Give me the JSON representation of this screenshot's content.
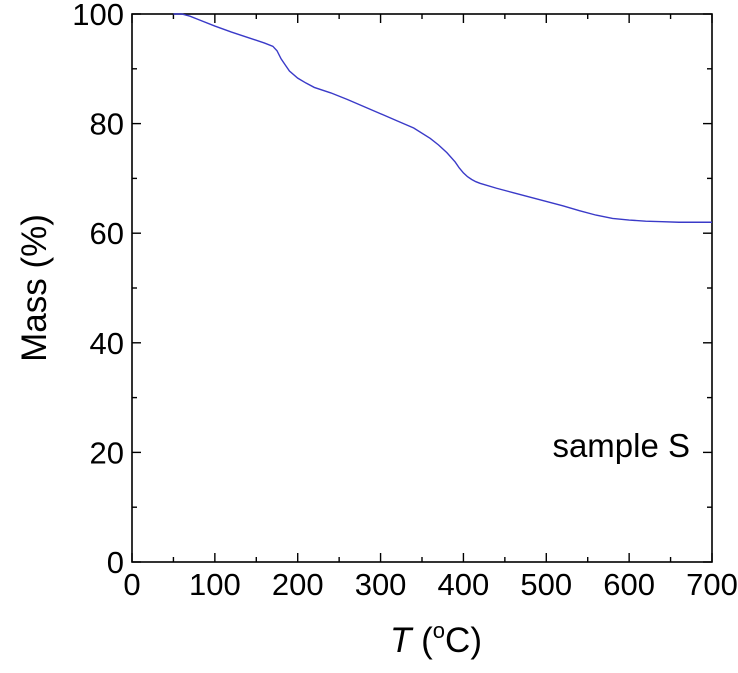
{
  "chart_data": {
    "type": "line",
    "title": "",
    "xlabel": {
      "symbol": "T",
      "unit_open": " (",
      "unit_sup": "o",
      "unit_rest": "C)"
    },
    "ylabel": "Mass (%)",
    "xlim": [
      0,
      700
    ],
    "ylim": [
      0,
      100
    ],
    "x_ticks": [
      "0",
      "100",
      "200",
      "300",
      "400",
      "500",
      "600",
      "700"
    ],
    "y_ticks": [
      "0",
      "20",
      "40",
      "60",
      "80",
      "100"
    ],
    "grid": false,
    "annotation": "sample S",
    "colors": {
      "line": "#3a3ac8",
      "axes": "#000000"
    },
    "series": [
      {
        "x": [
          50,
          60,
          70,
          80,
          100,
          120,
          140,
          160,
          170,
          175,
          180,
          185,
          190,
          200,
          210,
          220,
          240,
          260,
          280,
          300,
          320,
          340,
          360,
          370,
          380,
          390,
          395,
          400,
          405,
          410,
          415,
          420,
          440,
          460,
          480,
          500,
          520,
          540,
          560,
          580,
          600,
          620,
          640,
          660,
          680,
          700
        ],
        "y": [
          100,
          100,
          99.6,
          99,
          97.8,
          96.7,
          95.7,
          94.7,
          94.1,
          93.3,
          91.8,
          90.7,
          89.6,
          88.3,
          87.4,
          86.6,
          85.6,
          84.4,
          83.1,
          81.8,
          80.5,
          79.2,
          77.3,
          76.1,
          74.7,
          73,
          71.9,
          71,
          70.3,
          69.8,
          69.4,
          69.1,
          68.2,
          67.4,
          66.6,
          65.8,
          65,
          64.1,
          63.3,
          62.7,
          62.4,
          62.2,
          62.1,
          62,
          62,
          62
        ]
      }
    ]
  }
}
